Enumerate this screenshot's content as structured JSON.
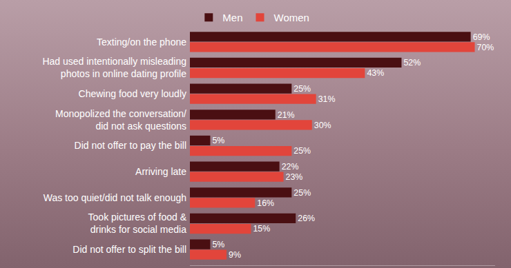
{
  "chart_data": {
    "type": "bar",
    "orientation": "horizontal",
    "categories": [
      "Texting/on the phone",
      "Had used intentionally misleading\nphotos in online dating profile",
      "Chewing food very loudly",
      "Monopolized the conversation/\ndid not ask questions",
      "Did not offer to pay the bill",
      "Arriving late",
      "Was too quiet/did not talk enough",
      "Took pictures of food &\ndrinks for social media",
      "Did not offer to split the bill"
    ],
    "series": [
      {
        "name": "Men",
        "color": "#4a0f12",
        "values": [
          69,
          52,
          25,
          21,
          5,
          22,
          25,
          26,
          5
        ],
        "value_labels": [
          "69%",
          "52%",
          "25%",
          "21%",
          "5%",
          "22%",
          "25%",
          "26%",
          "5%"
        ]
      },
      {
        "name": "Women",
        "color": "#e2453b",
        "values": [
          70,
          43,
          31,
          30,
          25,
          23,
          16,
          15,
          9
        ],
        "value_labels": [
          "70%",
          "43%",
          "31%",
          "30%",
          "25%",
          "23%",
          "16%",
          "15%",
          "9%"
        ]
      }
    ],
    "xlim": [
      0,
      75
    ],
    "data_labels": true,
    "tick_labels": "y",
    "legend": "top",
    "grid": false
  }
}
